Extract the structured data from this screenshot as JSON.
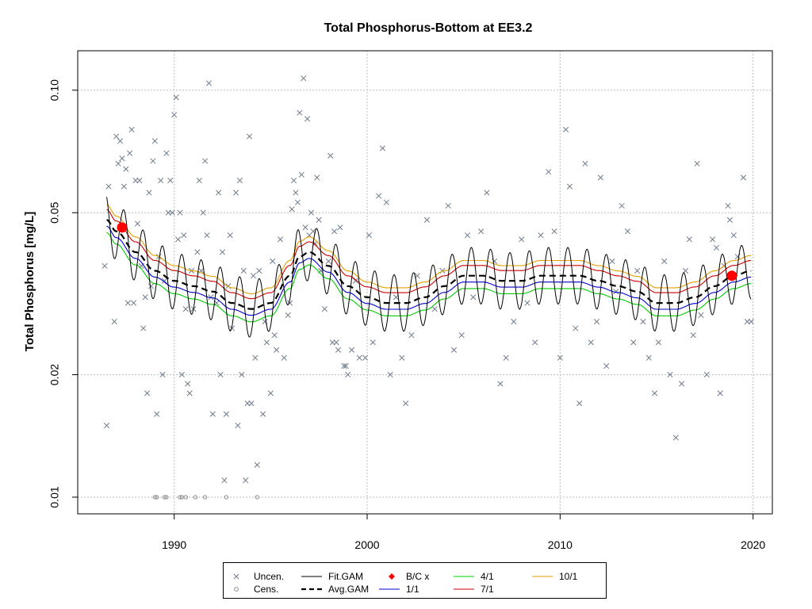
{
  "chart_data": {
    "type": "scatter",
    "title": "Total Phosphorus-Bottom at EE3.2",
    "xlabel": "",
    "ylabel": "Total Phosphorus [mg/L]",
    "ylog": true,
    "xlim": [
      1985.0,
      2021.0
    ],
    "ylim": [
      0.0091,
      0.125
    ],
    "grid": true,
    "x_ticks": [
      1990,
      2000,
      2010,
      2020
    ],
    "y_ticks": [
      0.01,
      0.02,
      0.05,
      0.1
    ],
    "y_tick_labels": [
      "0.01",
      "0.02",
      "0.05",
      "0.10"
    ],
    "legend_position": "bottom",
    "colors": {
      "uncensored": "#6e7b8b",
      "censored": "#8c8c8c",
      "fit_gam": "#000000",
      "avg_gam": "#000000",
      "bc": "#ff0000",
      "d1_1": "#0000cd",
      "d4_1": "#00cd00",
      "d7_1": "#cd0000",
      "d10_1": "#e69f00",
      "grid": "#bebebe"
    },
    "legend": [
      {
        "label": "Uncen.",
        "symbol": "x"
      },
      {
        "label": "Cens.",
        "symbol": "circle"
      },
      {
        "label": "Fit.GAM",
        "symbol": "line"
      },
      {
        "label": "Avg.GAM",
        "symbol": "dashed"
      },
      {
        "label": "B/C x",
        "symbol": "diamond"
      },
      {
        "label": "1/1",
        "symbol": "line"
      },
      {
        "label": "4/1",
        "symbol": "line"
      },
      {
        "label": "7/1",
        "symbol": "line"
      },
      {
        "label": "10/1",
        "symbol": "line"
      }
    ],
    "bc_points": [
      {
        "x": 1987.3,
        "y": 0.046
      },
      {
        "x": 2018.9,
        "y": 0.035
      }
    ],
    "avg_gam": {
      "x": [
        1986.5,
        1987,
        1988,
        1989,
        1990,
        1991,
        1992,
        1993,
        1994,
        1995,
        1996,
        1996.5,
        1997,
        1998,
        1999,
        2000,
        2001,
        2002,
        2003,
        2004,
        2005,
        2006,
        2007,
        2008,
        2009,
        2010,
        2011,
        2012,
        2013,
        2014,
        2015,
        2016,
        2017,
        2018,
        2019,
        2019.9
      ],
      "y": [
        0.048,
        0.045,
        0.04,
        0.036,
        0.034,
        0.033,
        0.032,
        0.03,
        0.029,
        0.03,
        0.035,
        0.039,
        0.04,
        0.037,
        0.033,
        0.031,
        0.03,
        0.03,
        0.031,
        0.033,
        0.035,
        0.035,
        0.034,
        0.034,
        0.035,
        0.035,
        0.035,
        0.034,
        0.033,
        0.032,
        0.03,
        0.03,
        0.031,
        0.033,
        0.035,
        0.036
      ]
    },
    "fit_gam_seasonal_amplitude": 0.16,
    "seasonal_band_offsets": {
      "d1_1": 0.965,
      "d4_1": 0.93,
      "d7_1": 1.06,
      "d10_1": 1.09
    },
    "uncensored_points": [
      [
        1986.4,
        0.037
      ],
      [
        1986.5,
        0.015
      ],
      [
        1986.6,
        0.058
      ],
      [
        1986.9,
        0.027
      ],
      [
        1987.0,
        0.077
      ],
      [
        1987.1,
        0.066
      ],
      [
        1987.2,
        0.075
      ],
      [
        1987.3,
        0.068
      ],
      [
        1987.4,
        0.058
      ],
      [
        1987.5,
        0.064
      ],
      [
        1987.6,
        0.03
      ],
      [
        1987.7,
        0.07
      ],
      [
        1987.8,
        0.08
      ],
      [
        1987.9,
        0.03
      ],
      [
        1988.0,
        0.06
      ],
      [
        1988.1,
        0.047
      ],
      [
        1988.2,
        0.06
      ],
      [
        1988.3,
        0.037
      ],
      [
        1988.4,
        0.026
      ],
      [
        1988.5,
        0.031
      ],
      [
        1988.6,
        0.018
      ],
      [
        1988.7,
        0.056
      ],
      [
        1988.8,
        0.033
      ],
      [
        1988.9,
        0.067
      ],
      [
        1989.0,
        0.075
      ],
      [
        1989.1,
        0.016
      ],
      [
        1989.2,
        0.039
      ],
      [
        1989.3,
        0.06
      ],
      [
        1989.4,
        0.02
      ],
      [
        1989.5,
        0.034
      ],
      [
        1989.6,
        0.07
      ],
      [
        1989.7,
        0.05
      ],
      [
        1989.8,
        0.06
      ],
      [
        1989.9,
        0.05
      ],
      [
        1990.0,
        0.087
      ],
      [
        1990.1,
        0.096
      ],
      [
        1990.2,
        0.043
      ],
      [
        1990.3,
        0.05
      ],
      [
        1990.4,
        0.02
      ],
      [
        1990.5,
        0.044
      ],
      [
        1990.6,
        0.029
      ],
      [
        1990.7,
        0.019
      ],
      [
        1990.8,
        0.018
      ],
      [
        1990.9,
        0.036
      ],
      [
        1991.0,
        0.029
      ],
      [
        1991.2,
        0.04
      ],
      [
        1991.3,
        0.06
      ],
      [
        1991.4,
        0.036
      ],
      [
        1991.5,
        0.05
      ],
      [
        1991.6,
        0.067
      ],
      [
        1991.7,
        0.044
      ],
      [
        1991.8,
        0.104
      ],
      [
        1991.9,
        0.031
      ],
      [
        1992.0,
        0.016
      ],
      [
        1992.2,
        0.03
      ],
      [
        1992.3,
        0.056
      ],
      [
        1992.4,
        0.02
      ],
      [
        1992.5,
        0.04
      ],
      [
        1992.6,
        0.011
      ],
      [
        1992.7,
        0.016
      ],
      [
        1992.8,
        0.033
      ],
      [
        1992.9,
        0.044
      ],
      [
        1993.0,
        0.026
      ],
      [
        1993.2,
        0.056
      ],
      [
        1993.3,
        0.015
      ],
      [
        1993.4,
        0.06
      ],
      [
        1993.5,
        0.02
      ],
      [
        1993.6,
        0.036
      ],
      [
        1993.7,
        0.011
      ],
      [
        1993.8,
        0.017
      ],
      [
        1993.9,
        0.077
      ],
      [
        1994.0,
        0.017
      ],
      [
        1994.1,
        0.035
      ],
      [
        1994.2,
        0.022
      ],
      [
        1994.3,
        0.012
      ],
      [
        1994.4,
        0.036
      ],
      [
        1994.6,
        0.016
      ],
      [
        1994.7,
        0.027
      ],
      [
        1994.8,
        0.024
      ],
      [
        1995.0,
        0.018
      ],
      [
        1995.1,
        0.038
      ],
      [
        1995.2,
        0.025
      ],
      [
        1995.3,
        0.023
      ],
      [
        1995.5,
        0.043
      ],
      [
        1995.7,
        0.022
      ],
      [
        1995.9,
        0.028
      ],
      [
        1996.0,
        0.03
      ],
      [
        1996.1,
        0.051
      ],
      [
        1996.2,
        0.06
      ],
      [
        1996.3,
        0.056
      ],
      [
        1996.4,
        0.053
      ],
      [
        1996.5,
        0.088
      ],
      [
        1996.6,
        0.062
      ],
      [
        1996.7,
        0.107
      ],
      [
        1996.8,
        0.046
      ],
      [
        1996.9,
        0.085
      ],
      [
        1997.0,
        0.044
      ],
      [
        1997.1,
        0.05
      ],
      [
        1997.2,
        0.045
      ],
      [
        1997.3,
        0.042
      ],
      [
        1997.4,
        0.061
      ],
      [
        1997.5,
        0.048
      ],
      [
        1997.6,
        0.036
      ],
      [
        1997.8,
        0.029
      ],
      [
        1998.0,
        0.038
      ],
      [
        1998.1,
        0.069
      ],
      [
        1998.2,
        0.024
      ],
      [
        1998.3,
        0.045
      ],
      [
        1998.4,
        0.024
      ],
      [
        1998.5,
        0.023
      ],
      [
        1998.6,
        0.046
      ],
      [
        1998.8,
        0.021
      ],
      [
        1998.9,
        0.021
      ],
      [
        1999.0,
        0.02
      ],
      [
        1999.2,
        0.023
      ],
      [
        1999.4,
        0.034
      ],
      [
        1999.6,
        0.022
      ],
      [
        1999.9,
        0.022
      ],
      [
        2000.1,
        0.044
      ],
      [
        2000.3,
        0.024
      ],
      [
        2000.6,
        0.055
      ],
      [
        2000.8,
        0.072
      ],
      [
        2001.0,
        0.053
      ],
      [
        2001.2,
        0.02
      ],
      [
        2001.5,
        0.031
      ],
      [
        2001.8,
        0.022
      ],
      [
        2002.0,
        0.017
      ],
      [
        2002.3,
        0.025
      ],
      [
        2002.6,
        0.035
      ],
      [
        2003.1,
        0.048
      ],
      [
        2003.5,
        0.029
      ],
      [
        2003.9,
        0.036
      ],
      [
        2004.2,
        0.052
      ],
      [
        2004.5,
        0.023
      ],
      [
        2004.9,
        0.025
      ],
      [
        2005.2,
        0.044
      ],
      [
        2005.5,
        0.031
      ],
      [
        2005.9,
        0.045
      ],
      [
        2006.2,
        0.056
      ],
      [
        2006.6,
        0.038
      ],
      [
        2006.9,
        0.019
      ],
      [
        2007.2,
        0.022
      ],
      [
        2007.6,
        0.027
      ],
      [
        2008.0,
        0.043
      ],
      [
        2008.3,
        0.03
      ],
      [
        2008.7,
        0.024
      ],
      [
        2009.0,
        0.044
      ],
      [
        2009.4,
        0.063
      ],
      [
        2009.7,
        0.045
      ],
      [
        2010.0,
        0.022
      ],
      [
        2010.3,
        0.08
      ],
      [
        2010.5,
        0.058
      ],
      [
        2010.8,
        0.026
      ],
      [
        2011.0,
        0.017
      ],
      [
        2011.3,
        0.066
      ],
      [
        2011.6,
        0.024
      ],
      [
        2011.9,
        0.027
      ],
      [
        2012.1,
        0.061
      ],
      [
        2012.4,
        0.021
      ],
      [
        2012.7,
        0.038
      ],
      [
        2012.9,
        0.032
      ],
      [
        2013.2,
        0.052
      ],
      [
        2013.5,
        0.045
      ],
      [
        2013.8,
        0.024
      ],
      [
        2014.0,
        0.036
      ],
      [
        2014.3,
        0.027
      ],
      [
        2014.6,
        0.022
      ],
      [
        2014.9,
        0.018
      ],
      [
        2015.1,
        0.024
      ],
      [
        2015.4,
        0.038
      ],
      [
        2015.7,
        0.02
      ],
      [
        2016.0,
        0.014
      ],
      [
        2016.3,
        0.019
      ],
      [
        2016.5,
        0.036
      ],
      [
        2016.7,
        0.043
      ],
      [
        2016.9,
        0.025
      ],
      [
        2017.1,
        0.066
      ],
      [
        2017.3,
        0.028
      ],
      [
        2017.6,
        0.02
      ],
      [
        2017.9,
        0.043
      ],
      [
        2018.1,
        0.041
      ],
      [
        2018.3,
        0.018
      ],
      [
        2018.5,
        0.037
      ],
      [
        2018.7,
        0.052
      ],
      [
        2018.8,
        0.048
      ],
      [
        2019.0,
        0.044
      ],
      [
        2019.2,
        0.039
      ],
      [
        2019.5,
        0.061
      ],
      [
        2019.7,
        0.027
      ],
      [
        2019.9,
        0.027
      ]
    ],
    "censored_points": [
      [
        1989.0,
        0.01
      ],
      [
        1989.1,
        0.01
      ],
      [
        1989.5,
        0.01
      ],
      [
        1989.6,
        0.01
      ],
      [
        1990.3,
        0.01
      ],
      [
        1990.4,
        0.01
      ],
      [
        1990.6,
        0.01
      ],
      [
        1991.1,
        0.01
      ],
      [
        1991.6,
        0.01
      ],
      [
        1992.7,
        0.01
      ],
      [
        1994.3,
        0.01
      ]
    ]
  }
}
